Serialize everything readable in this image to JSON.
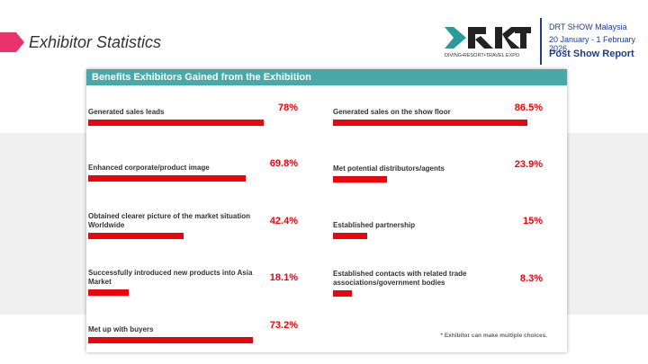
{
  "header": {
    "title": "Exhibitor Statistics",
    "logo_tagline": "DIVING•RESORT•TRAVEL EXPO",
    "event": "DRT SHOW Malaysia",
    "dates": "20 January - 1 February 2026",
    "report": "Post Show Report"
  },
  "chart_data": {
    "type": "bar",
    "title": "Benefits Exhibitors Gained from the Exhibition",
    "categories": [
      "Generated sales leads",
      "Enhanced corporate/product image",
      "Obtained clearer picture of the market situation Worldwide",
      "Successfully introduced new products into Asia Market",
      "Met up with buyers",
      "Generated sales on the show floor",
      "Met potential distributors/agents",
      "Established partnership",
      "Established contacts with related trade associations/government bodies"
    ],
    "values": [
      78,
      69.8,
      42.4,
      18.1,
      73.2,
      86.5,
      23.9,
      15,
      8.3
    ],
    "value_labels": [
      "78%",
      "69.8%",
      "42.4%",
      "18.1%",
      "73.2%",
      "86.5%",
      "23.9%",
      "15%",
      "8.3%"
    ],
    "color": "#e8060c",
    "note": "* Exhibitor can make multiple choices."
  }
}
